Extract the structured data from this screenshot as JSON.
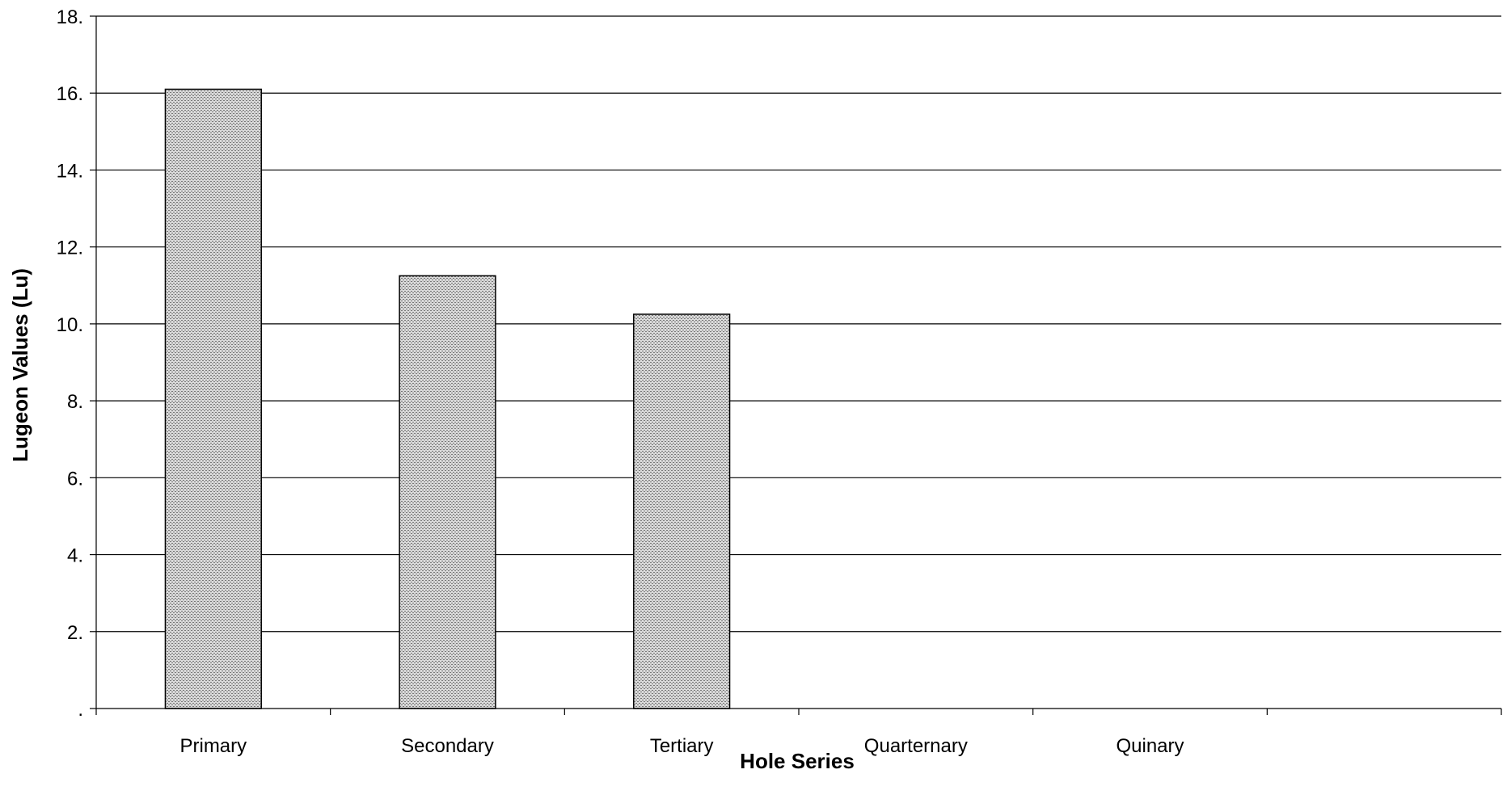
{
  "chart_data": {
    "type": "bar",
    "title": "",
    "xlabel": "Hole Series",
    "ylabel": "Lugeon Values (Lu)",
    "categories": [
      "Primary",
      "Secondary",
      "Tertiary",
      "Quarternary",
      "Quinary",
      ""
    ],
    "values": [
      16.1,
      11.25,
      10.25,
      null,
      null,
      null
    ],
    "ylim": [
      0,
      18
    ],
    "y_ticks": [
      ".",
      "2.",
      "4.",
      "6.",
      "8.",
      "10.",
      "12.",
      "14.",
      "16.",
      "18."
    ],
    "grid": true,
    "legend": "none",
    "colors": {
      "bar_fill": "#d8d8d8",
      "bar_dots": "#7a7a7a",
      "bar_stroke": "#000000",
      "grid": "#000000"
    }
  }
}
